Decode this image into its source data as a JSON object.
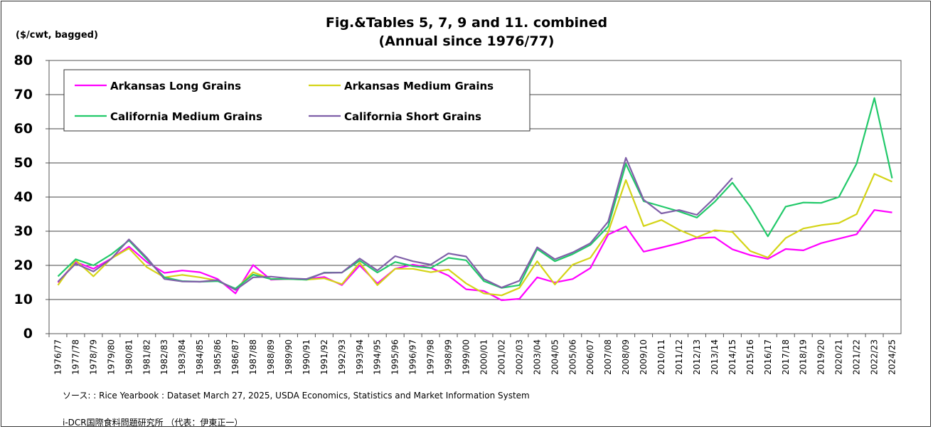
{
  "header": {
    "title_line1": "Fig.&Tables 5, 7, 9 and 11. combined",
    "title_line2": "(Annual since 1976/77)",
    "unit": "($/cwt, bagged)"
  },
  "footer": {
    "source": "ソース: : Rice Yearbook : Dataset  March 27, 2025, USDA Economics, Statistics and Market Information System",
    "org": "i-DCR国際食料問題研究所 （代表：伊東正一）"
  },
  "chart_data": {
    "type": "line",
    "ylim": [
      0,
      80
    ],
    "yticks": [
      0,
      10,
      20,
      30,
      40,
      50,
      60,
      70,
      80
    ],
    "grid": true,
    "legend_position": "top-left",
    "categories": [
      "1976/77",
      "1977/78",
      "1978/79",
      "1979/80",
      "1980/81",
      "1981/82",
      "1982/83",
      "1983/84",
      "1984/85",
      "1985/86",
      "1986/87",
      "1987/88",
      "1988/89",
      "1989/90",
      "1990/91",
      "1991/92",
      "1992/93",
      "1993/94",
      "1994/95",
      "1995/96",
      "1996/97",
      "1997/98",
      "1998/99",
      "1999/00",
      "2000/01",
      "2001/02",
      "2002/03",
      "2003/04",
      "2004/05",
      "2005/06",
      "2006/07",
      "2007/08",
      "2008/09",
      "2009/10",
      "2010/11",
      "2011/12",
      "2012/13",
      "2013/14",
      "2014/15",
      "2015/16",
      "2016/17",
      "2017/18",
      "2018/19",
      "2019/20",
      "2020/21",
      "2021/22",
      "2022/23",
      "2024/25"
    ],
    "series": [
      {
        "name": "Arkansas Long Grains",
        "color": "#ff00ff",
        "values": [
          15.0,
          21.0,
          19.0,
          22.0,
          25.5,
          21.0,
          17.8,
          18.5,
          18.0,
          16.0,
          11.8,
          20.1,
          15.8,
          16.0,
          16.0,
          16.6,
          14.2,
          20.0,
          14.7,
          19.0,
          20.2,
          19.3,
          17.0,
          13.0,
          12.5,
          9.8,
          10.2,
          16.5,
          15.0,
          16.0,
          19.2,
          29.0,
          31.4,
          24.0,
          25.2,
          26.5,
          28.0,
          28.2,
          24.7,
          23.0,
          21.9,
          24.8,
          24.4,
          26.5,
          27.8,
          29.1,
          36.2,
          35.5
        ]
      },
      {
        "name": "Arkansas Medium Grains",
        "color": "#d4d417",
        "values": [
          14.2,
          21.5,
          16.8,
          22.0,
          25.0,
          19.5,
          16.5,
          17.2,
          16.5,
          15.5,
          13.0,
          18.0,
          16.0,
          16.0,
          15.8,
          16.2,
          14.5,
          20.8,
          14.2,
          19.0,
          19.0,
          18.0,
          18.8,
          14.7,
          11.8,
          11.2,
          13.4,
          21.2,
          14.4,
          20.2,
          22.2,
          29.7,
          45.0,
          31.5,
          33.3,
          30.4,
          28.2,
          30.3,
          29.8,
          24.2,
          22.3,
          28.0,
          30.8,
          31.8,
          32.4,
          35.0,
          46.8,
          44.5
        ]
      },
      {
        "name": "California Medium Grains",
        "color": "#22c96a",
        "values": [
          16.8,
          21.8,
          20.0,
          23.2,
          27.3,
          21.8,
          16.5,
          15.4,
          15.2,
          15.4,
          13.2,
          17.3,
          16.0,
          16.0,
          15.8,
          17.9,
          17.9,
          21.4,
          17.9,
          21.0,
          19.8,
          19.2,
          22.2,
          21.5,
          15.4,
          13.4,
          14.2,
          24.8,
          21.2,
          23.3,
          26.0,
          31.4,
          49.7,
          38.8,
          37.3,
          35.8,
          34.0,
          38.6,
          44.2,
          37.2,
          28.5,
          37.2,
          38.4,
          38.3,
          40.0,
          49.8,
          69.0,
          45.5
        ]
      },
      {
        "name": "California Short Grains",
        "color": "#7f5fa8",
        "values": [
          15.2,
          20.5,
          18.2,
          21.9,
          27.6,
          22.3,
          16.0,
          15.3,
          15.2,
          15.7,
          12.8,
          16.5,
          16.7,
          16.2,
          16.0,
          17.8,
          17.9,
          22.0,
          18.5,
          22.7,
          21.2,
          20.2,
          23.5,
          22.6,
          16.0,
          13.5,
          15.5,
          25.3,
          21.8,
          23.8,
          26.5,
          32.8,
          51.5,
          39.2,
          35.2,
          36.2,
          34.8,
          39.8,
          45.6,
          null,
          null,
          null,
          null,
          null,
          null,
          null,
          null,
          null
        ]
      }
    ]
  }
}
